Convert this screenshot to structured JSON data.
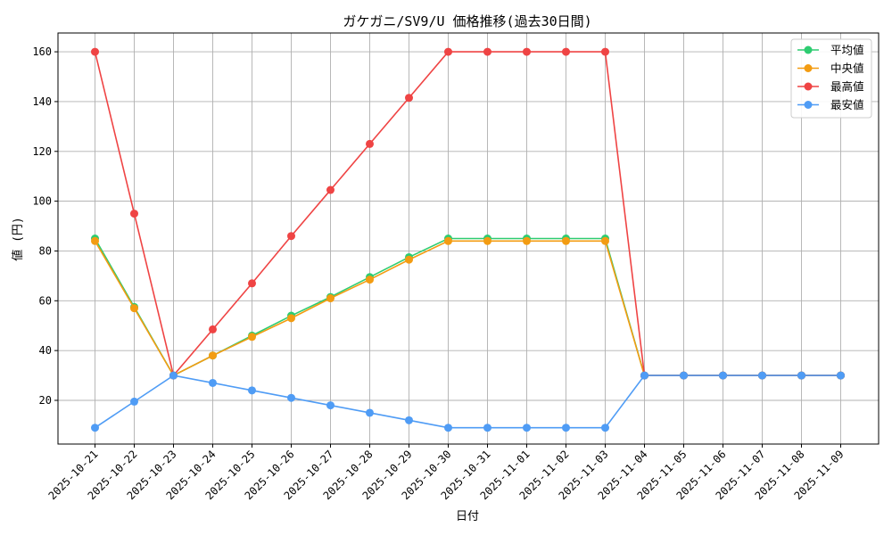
{
  "chart_data": {
    "type": "line",
    "title": "ガケガニ/SV9/U 価格推移(過去30日間)",
    "xlabel": "日付",
    "ylabel": "値 (円)",
    "categories": [
      "2025-10-21",
      "2025-10-22",
      "2025-10-23",
      "2025-10-24",
      "2025-10-25",
      "2025-10-26",
      "2025-10-27",
      "2025-10-28",
      "2025-10-29",
      "2025-10-30",
      "2025-10-31",
      "2025-11-01",
      "2025-11-02",
      "2025-11-03",
      "2025-11-04",
      "2025-11-05",
      "2025-11-06",
      "2025-11-07",
      "2025-11-08",
      "2025-11-09"
    ],
    "ylim": [
      2.45,
      167.55
    ],
    "yticks": [
      20,
      40,
      60,
      80,
      100,
      120,
      140,
      160
    ],
    "grid": true,
    "legend_position": "top-right",
    "series": [
      {
        "name": "平均値",
        "color": "#2ecc71",
        "values": [
          85,
          57.5,
          30,
          38,
          46,
          54,
          61.5,
          69.5,
          77.5,
          85,
          85,
          85,
          85,
          85,
          30,
          30,
          30,
          30,
          30,
          30
        ]
      },
      {
        "name": "中央値",
        "color": "#f39c12",
        "values": [
          84,
          57,
          30,
          38,
          45.5,
          53,
          61,
          68.5,
          76.5,
          84,
          84,
          84,
          84,
          84,
          30,
          30,
          30,
          30,
          30,
          30
        ]
      },
      {
        "name": "最高値",
        "color": "#ef4444",
        "values": [
          160,
          95,
          30,
          48.5,
          67,
          86,
          104.5,
          123,
          141.5,
          160,
          160,
          160,
          160,
          160,
          30,
          30,
          30,
          30,
          30,
          30
        ]
      },
      {
        "name": "最安値",
        "color": "#4f9cf5",
        "values": [
          9,
          19.5,
          30,
          27,
          24,
          21,
          18,
          15,
          12,
          9,
          9,
          9,
          9,
          9,
          30,
          30,
          30,
          30,
          30,
          30
        ]
      }
    ]
  }
}
